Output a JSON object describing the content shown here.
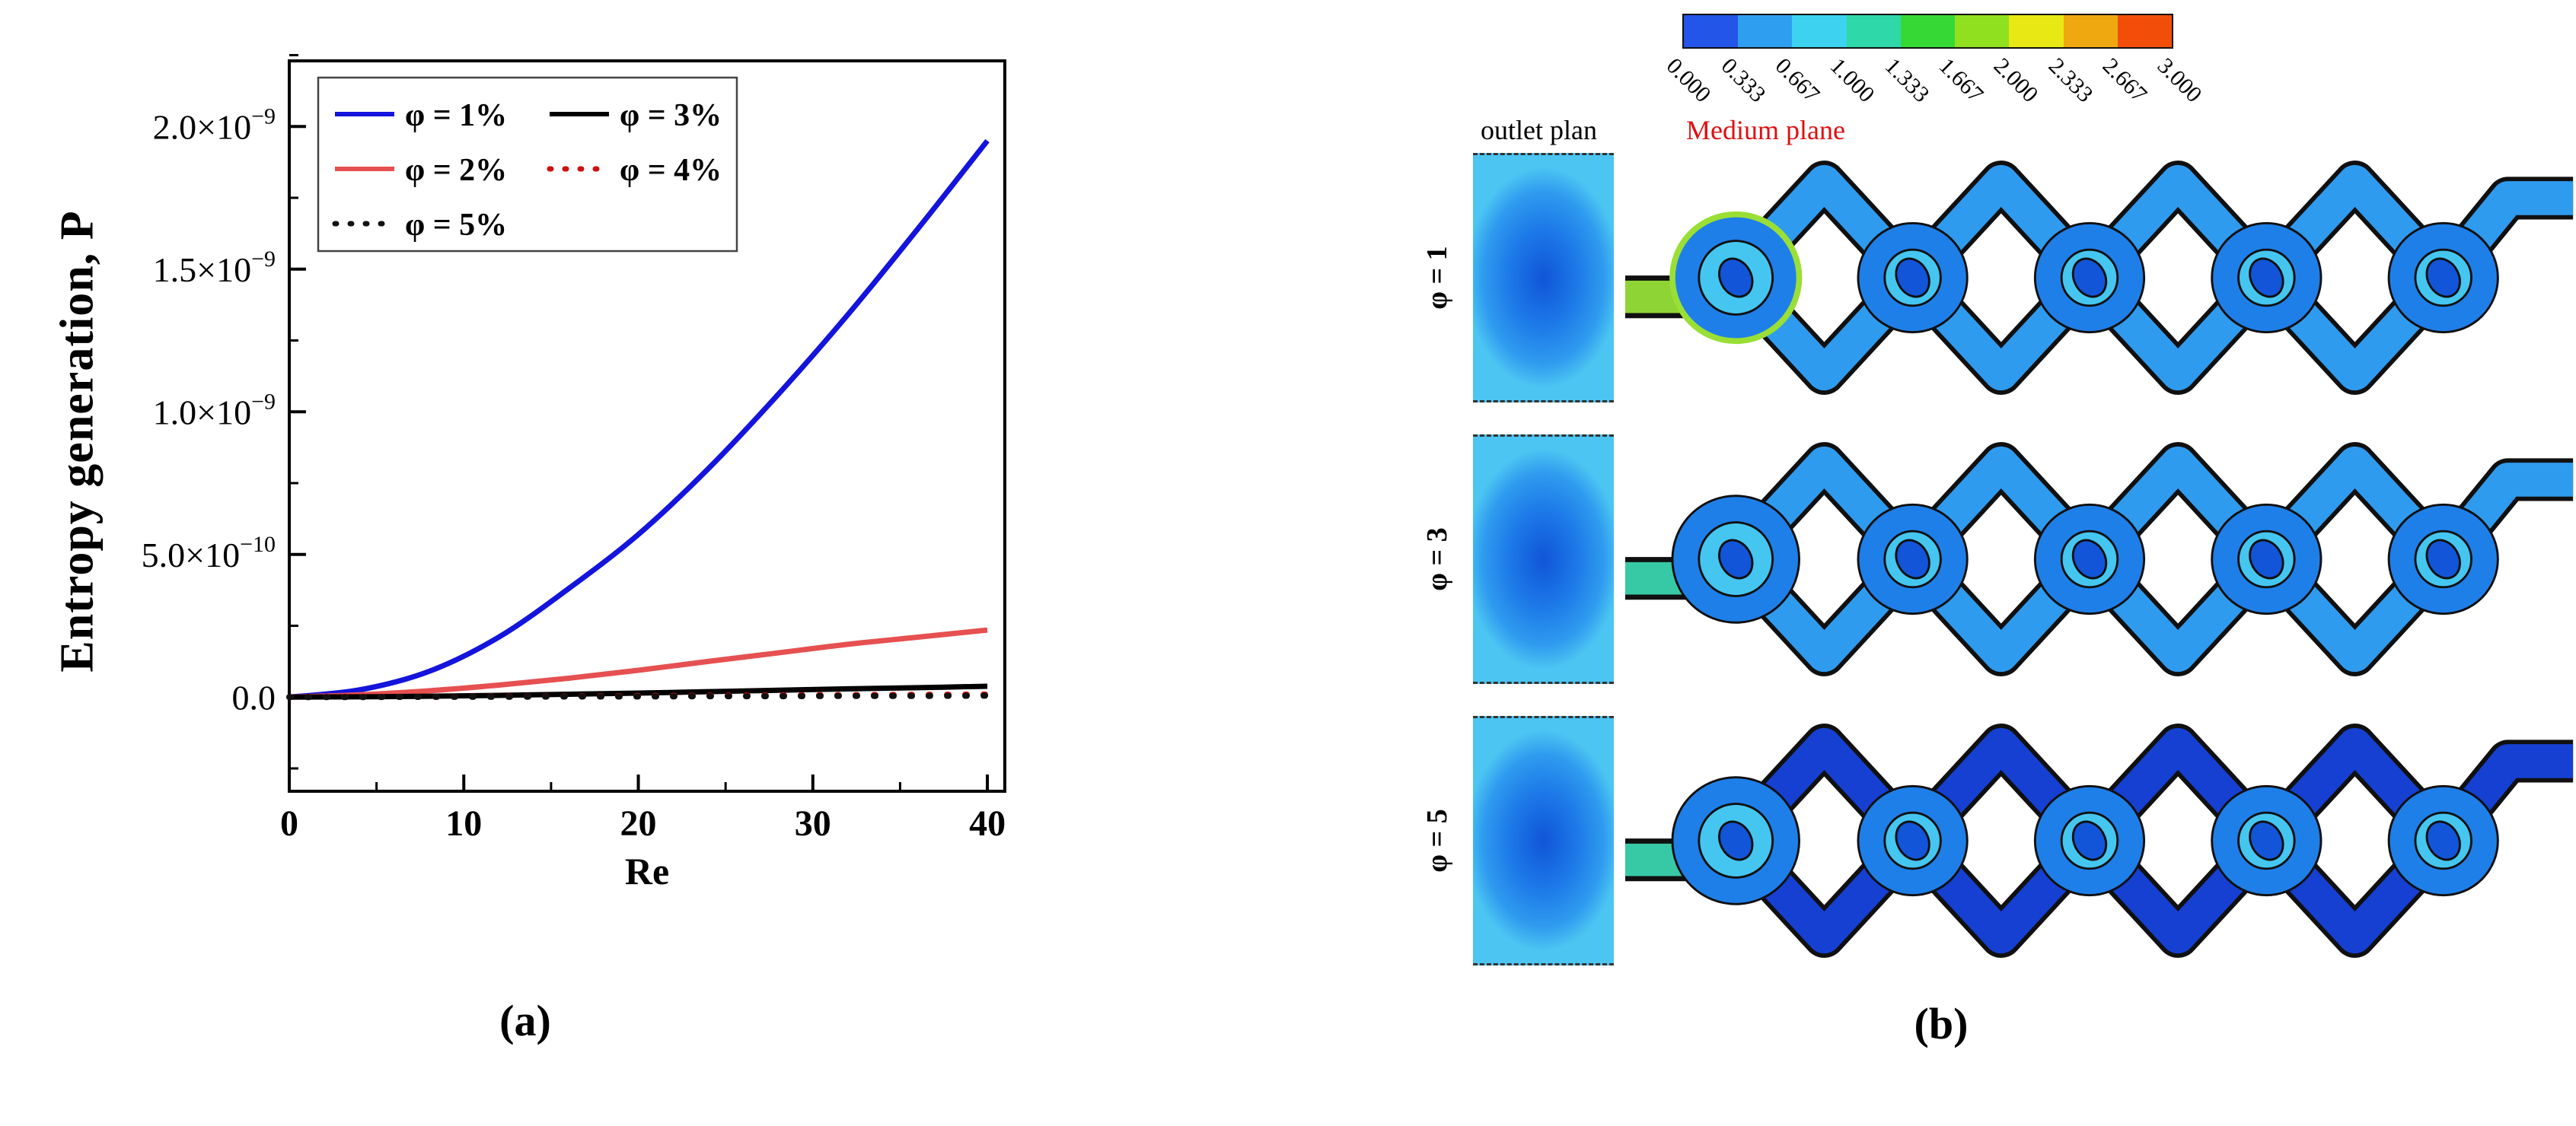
{
  "captions": {
    "a": "(a)",
    "b": "(b)"
  },
  "chart_data": [
    {
      "type": "line",
      "title": "",
      "xlabel": "Re",
      "ylabel": "Entropy generation, P",
      "xlim": [
        0,
        41
      ],
      "ylim_e9": [
        -0.33,
        2.23
      ],
      "units_note": "y values expressed in units of 1e-9",
      "x": [
        0,
        4,
        8,
        12,
        16,
        20,
        24,
        28,
        32,
        36,
        40
      ],
      "series": [
        {
          "name": "φ = 1%",
          "color": "#1414dc",
          "style": "solid",
          "width": 7,
          "values_e9": [
            0,
            0.025,
            0.09,
            0.21,
            0.38,
            0.57,
            0.8,
            1.06,
            1.34,
            1.64,
            1.95
          ]
        },
        {
          "name": "φ = 2%",
          "color": "#e65050",
          "style": "solid",
          "width": 7,
          "values_e9": [
            0,
            0.008,
            0.022,
            0.042,
            0.066,
            0.094,
            0.125,
            0.155,
            0.185,
            0.21,
            0.235
          ]
        },
        {
          "name": "φ = 3%",
          "color": "#000000",
          "style": "solid",
          "width": 7,
          "values_e9": [
            0,
            0.001,
            0.003,
            0.006,
            0.01,
            0.014,
            0.019,
            0.024,
            0.029,
            0.033,
            0.038
          ]
        },
        {
          "name": "φ = 4%",
          "color": "#cc1111",
          "style": "dotted",
          "width": 8,
          "values_e9": [
            0,
            0.001,
            0.001,
            0.002,
            0.003,
            0.004,
            0.005,
            0.006,
            0.007,
            0.008,
            0.009
          ]
        },
        {
          "name": "φ = 5%",
          "color": "#111111",
          "style": "dotted",
          "width": 8,
          "values_e9": [
            0,
            0.0,
            0.001,
            0.001,
            0.002,
            0.002,
            0.003,
            0.003,
            0.004,
            0.004,
            0.005
          ]
        }
      ],
      "legend_rows": [
        [
          0,
          2
        ],
        [
          1,
          3
        ],
        [
          4
        ]
      ],
      "yticks": [
        {
          "v": 0.0,
          "label": "0.0"
        },
        {
          "v": 0.5,
          "label": "5.0×10^−10"
        },
        {
          "v": 1.0,
          "label": "1.0×10^−9"
        },
        {
          "v": 1.5,
          "label": "1.5×10^−9"
        },
        {
          "v": 2.0,
          "label": "2.0×10^−9"
        }
      ],
      "xticks": [
        0,
        10,
        20,
        30,
        40
      ],
      "xticks_minor": [
        5,
        15,
        25,
        35
      ]
    },
    {
      "type": "heatmap",
      "outlet_label": "outlet plan",
      "medium_label": "Medium plane",
      "medium_label_color": "#e01010",
      "colorbar": {
        "ticks": [
          "0.000",
          "0.333",
          "0.667",
          "1.000",
          "1.333",
          "1.667",
          "2.000",
          "2.333",
          "2.667",
          "3.000"
        ],
        "segment_colors": [
          "#2255e8",
          "#2e9ff0",
          "#3cd2f0",
          "#2fd8a8",
          "#35d835",
          "#90e020",
          "#e8e815",
          "#f0a810",
          "#f24e0a"
        ]
      },
      "rows": [
        {
          "label": "φ = 1",
          "colors": {
            "channel": "#2f9bef",
            "circle": "#1f7fe8",
            "ring": "#45c6f0",
            "hole": "#1255d8",
            "inlet": "#8fd435",
            "accent": "#9adf35"
          }
        },
        {
          "label": "φ = 3",
          "colors": {
            "channel": "#2f9bef",
            "circle": "#1f7fe8",
            "ring": "#45c6f0",
            "hole": "#1255d8",
            "inlet": "#37c9a5"
          }
        },
        {
          "label": "φ = 5",
          "colors": {
            "channel": "#2f9bef",
            "diag": "#1540d2",
            "exit": "#1540d2",
            "circle": "#1f7fe8",
            "ring": "#45c6f0",
            "hole": "#1255d8",
            "inlet": "#37c9a5"
          }
        }
      ]
    }
  ]
}
